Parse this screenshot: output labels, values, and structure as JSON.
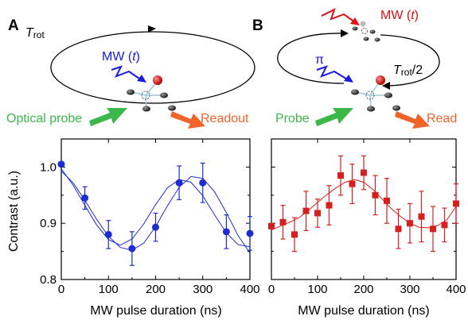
{
  "panels": {
    "a": {
      "letter": "A",
      "cycle_label_main": "T",
      "cycle_label_sub": "rot",
      "mw_label": "MW (",
      "mw_var": "t",
      "mw_close": ")",
      "left_label": "Optical probe",
      "right_label": "Readout",
      "colors": {
        "mw": "#1a1adc",
        "probe": "#3cb84a",
        "readout": "#f0642a"
      }
    },
    "b": {
      "letter": "B",
      "cycle_label_main": "T",
      "cycle_label_sub": "rot",
      "cycle_label_suffix": "/2",
      "mw_label": "MW (",
      "mw_var": "t",
      "mw_close": ")",
      "pi_label": "π",
      "left_label": "Probe",
      "right_label": "Read",
      "colors": {
        "mw": "#e01010",
        "pi": "#1a1adc",
        "probe": "#3cb84a",
        "readout": "#f0642a"
      }
    }
  },
  "chart_data": [
    {
      "type": "scatter",
      "panel": "A",
      "xlabel": "MW pulse duration (ns)",
      "ylabel": "Contrast (a.u.)",
      "xlim": [
        0,
        400
      ],
      "ylim": [
        0.8,
        1.05
      ],
      "xticks": [
        "0",
        "100",
        "200",
        "300",
        "400"
      ],
      "yticks": [
        "0.8",
        "0.9",
        "1.0"
      ],
      "color": "#1f2ccf",
      "x": [
        0,
        50,
        100,
        150,
        200,
        250,
        300,
        350,
        400
      ],
      "y": [
        1.005,
        0.945,
        0.88,
        0.855,
        0.893,
        0.972,
        0.972,
        0.885,
        0.882
      ],
      "err": [
        0,
        0.02,
        0.025,
        0.03,
        0.025,
        0.03,
        0.035,
        0.03,
        0.03
      ],
      "fit1_x": [
        0,
        25,
        50,
        75,
        100,
        125,
        150,
        175,
        200,
        225,
        250,
        275,
        300,
        325,
        350,
        375,
        400
      ],
      "fit1_y": [
        0.997,
        0.968,
        0.932,
        0.897,
        0.871,
        0.861,
        0.872,
        0.899,
        0.933,
        0.963,
        0.978,
        0.973,
        0.949,
        0.915,
        0.883,
        0.862,
        0.858
      ],
      "fit2_x": [
        0,
        25,
        50,
        75,
        100,
        125,
        150,
        175,
        200,
        225,
        250,
        275,
        300,
        325,
        350,
        375,
        400
      ],
      "fit2_y": [
        0.993,
        0.972,
        0.941,
        0.907,
        0.877,
        0.857,
        0.852,
        0.865,
        0.894,
        0.931,
        0.964,
        0.983,
        0.98,
        0.956,
        0.919,
        0.878,
        0.847
      ]
    },
    {
      "type": "scatter",
      "panel": "B",
      "xlabel": "MW pulse duration (ns)",
      "xlim": [
        0,
        400
      ],
      "ylim": [
        0.8,
        1.05
      ],
      "xticks": [
        "0",
        "100",
        "200",
        "300",
        "400"
      ],
      "color": "#d61f1f",
      "x": [
        0,
        25,
        50,
        75,
        100,
        125,
        150,
        175,
        200,
        225,
        250,
        275,
        300,
        325,
        350,
        375,
        400
      ],
      "y": [
        0.895,
        0.902,
        0.88,
        0.922,
        0.918,
        0.932,
        0.985,
        0.97,
        0.99,
        0.95,
        0.94,
        0.89,
        0.9,
        0.912,
        0.89,
        0.897,
        0.935
      ],
      "err": [
        0,
        0.03,
        0.03,
        0.035,
        0.025,
        0.035,
        0.035,
        0.035,
        0.03,
        0.035,
        0.04,
        0.035,
        0.035,
        0.045,
        0.04,
        0.03,
        0.035
      ],
      "fit1_x": [
        0,
        20,
        40,
        60,
        80,
        100,
        120,
        140,
        160,
        180,
        200,
        220,
        240,
        260,
        280,
        300,
        320,
        340,
        360,
        380,
        400
      ],
      "fit1_y": [
        0.888,
        0.895,
        0.902,
        0.91,
        0.923,
        0.937,
        0.951,
        0.963,
        0.973,
        0.978,
        0.973,
        0.96,
        0.943,
        0.926,
        0.912,
        0.9,
        0.893,
        0.892,
        0.896,
        0.906,
        0.93
      ]
    }
  ]
}
